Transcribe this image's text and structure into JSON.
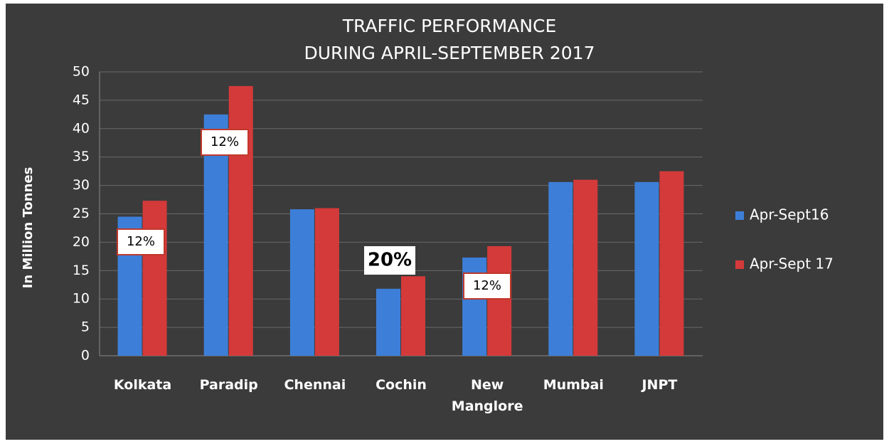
{
  "chart_data": {
    "type": "bar",
    "title": [
      "TRAFFIC PERFORMANCE",
      "DURING APRIL-SEPTEMBER 2017"
    ],
    "y_label": "In Million Tonnes",
    "categories": [
      "Kolkata",
      "Paradip",
      "Chennai",
      "Cochin",
      "New Manglore",
      "Mumbai",
      "JNPT"
    ],
    "series": [
      {
        "name": "Apr-Sept16",
        "color": "#3d7fd8",
        "values": [
          24.5,
          42.5,
          25.8,
          11.8,
          17.3,
          30.6,
          30.6
        ]
      },
      {
        "name": "Apr-Sept 17",
        "color": "#d43a3a",
        "values": [
          27.3,
          47.5,
          26,
          14,
          19.3,
          31,
          32.5
        ]
      }
    ],
    "annotations": [
      "12%",
      "12%",
      "20%",
      "12%"
    ],
    "ylim": [
      0,
      50
    ],
    "yticks": [
      0,
      5,
      10,
      15,
      20,
      25,
      30,
      35,
      40,
      45,
      50
    ],
    "grid": true,
    "legend": "right"
  }
}
